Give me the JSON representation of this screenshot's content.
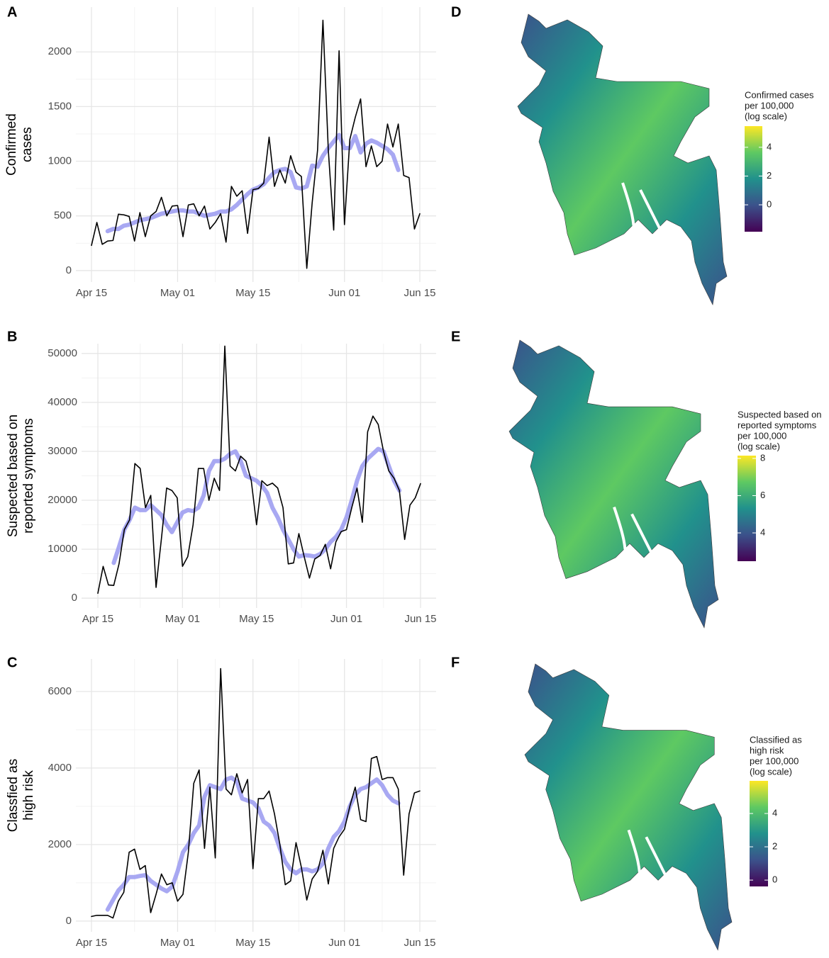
{
  "chart_data": [
    {
      "type": "line",
      "label": "A",
      "ylabel": [
        "Confirmed",
        "cases"
      ],
      "x": [
        "Apr 15",
        "Apr 16",
        "Apr 17",
        "Apr 18",
        "Apr 19",
        "Apr 20",
        "Apr 21",
        "Apr 22",
        "Apr 23",
        "Apr 24",
        "Apr 25",
        "Apr 26",
        "Apr 27",
        "Apr 28",
        "Apr 29",
        "Apr 30",
        "May 01",
        "May 02",
        "May 03",
        "May 04",
        "May 05",
        "May 06",
        "May 07",
        "May 08",
        "May 09",
        "May 10",
        "May 11",
        "May 12",
        "May 13",
        "May 14",
        "May 15",
        "May 16",
        "May 17",
        "May 18",
        "May 19",
        "May 20",
        "May 21",
        "May 22",
        "May 23",
        "May 24",
        "May 25",
        "May 26",
        "May 27",
        "May 28",
        "May 29",
        "May 30",
        "May 31",
        "Jun 01",
        "Jun 02",
        "Jun 03",
        "Jun 04",
        "Jun 05",
        "Jun 06",
        "Jun 07",
        "Jun 08",
        "Jun 09",
        "Jun 10",
        "Jun 11",
        "Jun 12",
        "Jun 13",
        "Jun 14",
        "Jun 15"
      ],
      "xticks": [
        "Apr 15",
        "May 01",
        "May 15",
        "Jun 01",
        "Jun 15"
      ],
      "ylim": [
        -105,
        2410
      ],
      "yticks": [
        0,
        500,
        1000,
        1500,
        2000
      ],
      "grid": true,
      "series": [
        {
          "color": "#9999f0",
          "values": [
            null,
            null,
            null,
            360,
            380,
            380,
            410,
            420,
            440,
            460,
            470,
            480,
            500,
            520,
            530,
            540,
            550,
            550,
            540,
            540,
            520,
            500,
            510,
            520,
            540,
            540,
            560,
            600,
            650,
            700,
            740,
            760,
            790,
            850,
            900,
            920,
            930,
            900,
            760,
            750,
            770,
            960,
            950,
            1050,
            1120,
            1180,
            1240,
            1120,
            1120,
            1230,
            1080,
            1160,
            1190,
            1170,
            1140,
            1110,
            1060,
            920,
            null,
            null,
            null,
            null
          ]
        },
        {
          "color": "#000000",
          "values": [
            230,
            440,
            240,
            270,
            275,
            515,
            510,
            495,
            270,
            530,
            310,
            500,
            540,
            670,
            500,
            590,
            595,
            310,
            600,
            610,
            500,
            590,
            380,
            440,
            520,
            260,
            770,
            680,
            730,
            340,
            740,
            750,
            800,
            1220,
            770,
            920,
            800,
            1050,
            900,
            860,
            20,
            620,
            1100,
            2290,
            1100,
            370,
            2010,
            420,
            1200,
            1400,
            1570,
            950,
            1140,
            950,
            1000,
            1340,
            1130,
            1340,
            870,
            850,
            380,
            520
          ]
        }
      ]
    },
    {
      "type": "line",
      "label": "B",
      "ylabel": [
        "Suspected based on",
        "reported symptoms"
      ],
      "x": [
        "Apr 15",
        "Apr 16",
        "Apr 17",
        "Apr 18",
        "Apr 19",
        "Apr 20",
        "Apr 21",
        "Apr 22",
        "Apr 23",
        "Apr 24",
        "Apr 25",
        "Apr 26",
        "Apr 27",
        "Apr 28",
        "Apr 29",
        "Apr 30",
        "May 01",
        "May 02",
        "May 03",
        "May 04",
        "May 05",
        "May 06",
        "May 07",
        "May 08",
        "May 09",
        "May 10",
        "May 11",
        "May 12",
        "May 13",
        "May 14",
        "May 15",
        "May 16",
        "May 17",
        "May 18",
        "May 19",
        "May 20",
        "May 21",
        "May 22",
        "May 23",
        "May 24",
        "May 25",
        "May 26",
        "May 27",
        "May 28",
        "May 29",
        "May 30",
        "May 31",
        "Jun 01",
        "Jun 02",
        "Jun 03",
        "Jun 04",
        "Jun 05",
        "Jun 06",
        "Jun 07",
        "Jun 08",
        "Jun 09",
        "Jun 10",
        "Jun 11",
        "Jun 12",
        "Jun 13",
        "Jun 14",
        "Jun 15"
      ],
      "xticks": [
        "Apr 15",
        "May 01",
        "May 15",
        "Jun 01",
        "Jun 15"
      ],
      "ylim": [
        -2000,
        52000
      ],
      "yticks": [
        0,
        10000,
        20000,
        30000,
        40000,
        50000
      ],
      "grid": true,
      "series": [
        {
          "color": "#9999f0",
          "values": [
            null,
            null,
            null,
            7200,
            10500,
            14000,
            16000,
            18500,
            18000,
            18000,
            19000,
            18000,
            17000,
            15000,
            13500,
            15500,
            17500,
            18000,
            17800,
            18500,
            21000,
            26000,
            28000,
            28000,
            28500,
            29500,
            30000,
            28000,
            25000,
            24500,
            24000,
            23000,
            21500,
            18500,
            16500,
            14000,
            12000,
            10000,
            8500,
            8800,
            8700,
            8500,
            9000,
            10000,
            11500,
            12500,
            14000,
            16500,
            20000,
            24000,
            27000,
            28500,
            29500,
            30500,
            30000,
            27000,
            24000,
            22000,
            null,
            null,
            null,
            null
          ]
        },
        {
          "color": "#000000",
          "values": [
            1000,
            6500,
            2700,
            2600,
            7000,
            14000,
            16000,
            27500,
            26500,
            18500,
            21000,
            2200,
            12000,
            22500,
            22000,
            20500,
            6500,
            8500,
            15000,
            26500,
            26500,
            20000,
            24500,
            22000,
            51500,
            27000,
            26000,
            29000,
            28000,
            24000,
            15000,
            24000,
            23000,
            23500,
            22500,
            18500,
            7000,
            7200,
            13200,
            8500,
            4100,
            8000,
            8700,
            11000,
            6000,
            11500,
            13600,
            14000,
            18500,
            22500,
            15500,
            34000,
            37200,
            35500,
            30000,
            26000,
            24500,
            22000,
            12000,
            19000,
            20500,
            23400
          ]
        }
      ]
    },
    {
      "type": "line",
      "label": "C",
      "ylabel": [
        "Classfied as",
        "high risk"
      ],
      "x": [
        "Apr 15",
        "Apr 16",
        "Apr 17",
        "Apr 18",
        "Apr 19",
        "Apr 20",
        "Apr 21",
        "Apr 22",
        "Apr 23",
        "Apr 24",
        "Apr 25",
        "Apr 26",
        "Apr 27",
        "Apr 28",
        "Apr 29",
        "Apr 30",
        "May 01",
        "May 02",
        "May 03",
        "May 04",
        "May 05",
        "May 06",
        "May 07",
        "May 08",
        "May 09",
        "May 10",
        "May 11",
        "May 12",
        "May 13",
        "May 14",
        "May 15",
        "May 16",
        "May 17",
        "May 18",
        "May 19",
        "May 20",
        "May 21",
        "May 22",
        "May 23",
        "May 24",
        "May 25",
        "May 26",
        "May 27",
        "May 28",
        "May 29",
        "May 30",
        "May 31",
        "Jun 01",
        "Jun 02",
        "Jun 03",
        "Jun 04",
        "Jun 05",
        "Jun 06",
        "Jun 07",
        "Jun 08",
        "Jun 09",
        "Jun 10",
        "Jun 11",
        "Jun 12",
        "Jun 13",
        "Jun 14",
        "Jun 15"
      ],
      "xticks": [
        "Apr 15",
        "May 01",
        "May 15",
        "Jun 01",
        "Jun 15"
      ],
      "ylim": [
        -280,
        6850
      ],
      "yticks": [
        0,
        2000,
        4000,
        6000
      ],
      "grid": true,
      "series": [
        {
          "color": "#9999f0",
          "values": [
            null,
            null,
            null,
            300,
            550,
            800,
            950,
            1150,
            1150,
            1180,
            1200,
            1050,
            950,
            850,
            780,
            900,
            1300,
            1800,
            2000,
            2300,
            2500,
            3250,
            3550,
            3500,
            3450,
            3700,
            3750,
            3650,
            3200,
            3150,
            3100,
            2950,
            2600,
            2500,
            2300,
            1900,
            1550,
            1350,
            1250,
            1350,
            1350,
            1300,
            1350,
            1500,
            1900,
            2200,
            2350,
            2600,
            3000,
            3300,
            3450,
            3500,
            3600,
            3700,
            3550,
            3300,
            3150,
            3080,
            null,
            null,
            null,
            null
          ]
        },
        {
          "color": "#000000",
          "values": [
            120,
            150,
            150,
            150,
            80,
            520,
            750,
            1800,
            1880,
            1350,
            1450,
            220,
            700,
            1230,
            950,
            1000,
            520,
            700,
            1800,
            3600,
            3950,
            1900,
            3500,
            1650,
            6600,
            3450,
            3300,
            3850,
            3350,
            3700,
            1370,
            3200,
            3200,
            3400,
            2800,
            2000,
            950,
            1050,
            2050,
            1400,
            550,
            1100,
            1300,
            1850,
            970,
            1900,
            2200,
            2400,
            3000,
            3500,
            2650,
            2600,
            4250,
            4300,
            3700,
            3750,
            3750,
            3450,
            1200,
            2800,
            3350,
            3400
          ]
        }
      ]
    },
    {
      "type": "map",
      "label": "D",
      "legend_title": [
        "Confirmed cases",
        "per 100,000",
        "(log scale)"
      ],
      "colors": [
        "#440154",
        "#3b528b",
        "#21918c",
        "#5ec962",
        "#fde725"
      ],
      "colorbar_lim": [
        -1.87,
        5.47
      ],
      "colorbar_ticks": [
        0,
        2,
        4
      ]
    },
    {
      "type": "map",
      "label": "E",
      "legend_title": [
        "Suspected based on",
        "reported symptoms",
        "per 100,000",
        "(log scale)"
      ],
      "colors": [
        "#440154",
        "#3b528b",
        "#21918c",
        "#5ec962",
        "#fde725"
      ],
      "colorbar_lim": [
        2.48,
        8.15
      ],
      "colorbar_ticks": [
        4,
        6,
        8
      ]
    },
    {
      "type": "map",
      "label": "F",
      "legend_title": [
        "Classified as",
        "high risk",
        "per 100,000",
        "(log scale)"
      ],
      "colors": [
        "#440154",
        "#3b528b",
        "#21918c",
        "#5ec962",
        "#fde725"
      ],
      "colorbar_lim": [
        -0.38,
        5.96
      ],
      "colorbar_ticks": [
        0,
        2,
        4
      ]
    }
  ]
}
